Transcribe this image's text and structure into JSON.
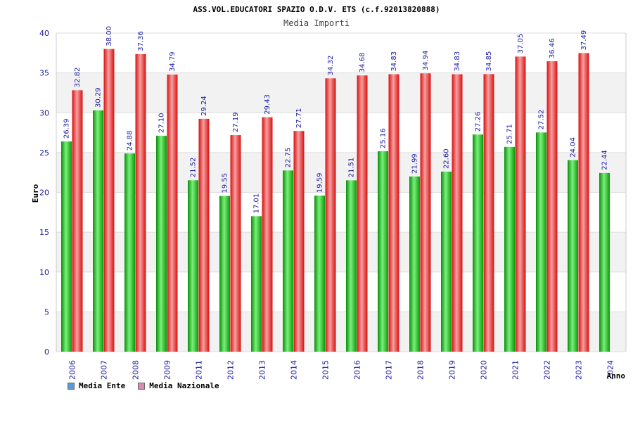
{
  "chart_data": {
    "type": "bar",
    "title": "ASS.VOL.EDUCATORI SPAZIO O.D.V. ETS (c.f.92013820888)",
    "subtitle": "Media Importi",
    "xlabel": "Anno",
    "ylabel": "Euro",
    "ylim": [
      0,
      40
    ],
    "yticks": [
      0,
      5,
      10,
      15,
      20,
      25,
      30,
      35,
      40
    ],
    "grid": true,
    "legend_position": "bottom-left",
    "categories": [
      "2006",
      "2007",
      "2008",
      "2009",
      "2011",
      "2012",
      "2013",
      "2014",
      "2015",
      "2016",
      "2017",
      "2018",
      "2019",
      "2020",
      "2021",
      "2022",
      "2023",
      "2024"
    ],
    "series": [
      {
        "name": "Media Ente",
        "legend_color": "#5b9bd5",
        "color": "#16b816",
        "values": [
          26.39,
          30.29,
          24.88,
          27.1,
          21.52,
          19.55,
          17.01,
          22.75,
          19.59,
          21.51,
          25.16,
          21.99,
          22.6,
          27.26,
          25.71,
          27.52,
          24.04,
          22.44
        ],
        "labels": [
          "26.39",
          "30.29",
          "24.88",
          "27.10",
          "21.52",
          "19.55",
          "17.01",
          "22.75",
          "19.59",
          "21.51",
          "25.16",
          "21.99",
          "22.60",
          "27.26",
          "25.71",
          "27.52",
          "24.04",
          "22.44"
        ]
      },
      {
        "name": "Media Nazionale",
        "legend_color": "#d98cb3",
        "color": "#e82020",
        "values": [
          32.82,
          38.0,
          37.36,
          34.79,
          29.24,
          27.19,
          29.43,
          27.71,
          34.32,
          34.68,
          34.83,
          34.94,
          34.83,
          34.85,
          37.05,
          36.46,
          37.49,
          null
        ],
        "labels": [
          "32.82",
          "38.00",
          "37.36",
          "34.79",
          "29.24",
          "27.19",
          "29.43",
          "27.71",
          "34.32",
          "34.68",
          "34.83",
          "34.94",
          "34.83",
          "34.85",
          "37.05",
          "36.46",
          "37.49",
          null
        ]
      }
    ]
  }
}
